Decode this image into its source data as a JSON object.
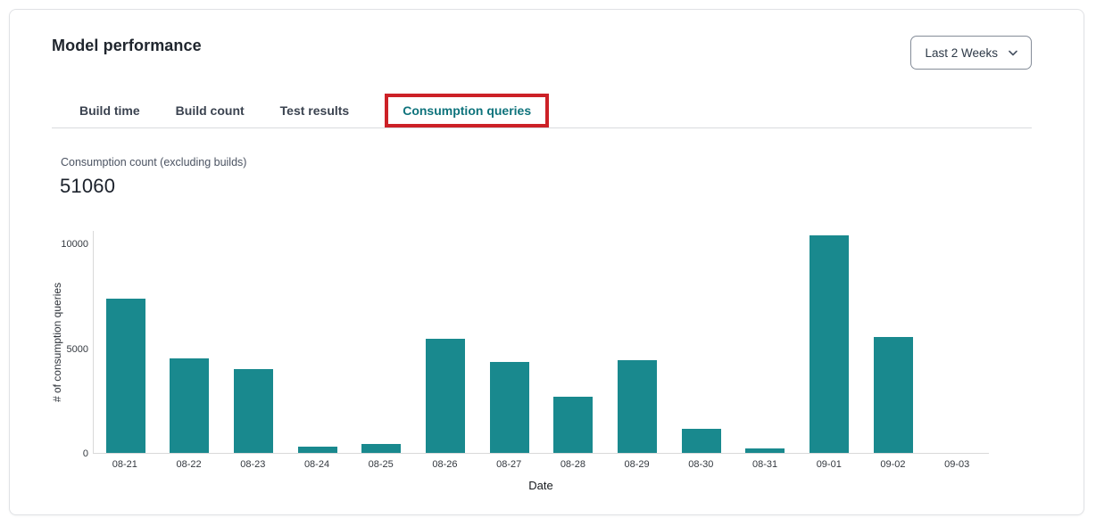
{
  "header": {
    "title": "Model performance",
    "date_range": {
      "value": "Last 2 Weeks"
    }
  },
  "tabs": {
    "items": [
      {
        "label": "Build time",
        "active": false
      },
      {
        "label": "Build count",
        "active": false
      },
      {
        "label": "Test results",
        "active": false
      },
      {
        "label": "Consumption queries",
        "active": true
      }
    ]
  },
  "annotation": {
    "type": "highlight-box",
    "color": "#cc2127"
  },
  "stat": {
    "label": "Consumption count (excluding builds)",
    "value": "51060"
  },
  "chart_data": {
    "type": "bar",
    "categories": [
      "08-21",
      "08-22",
      "08-23",
      "08-24",
      "08-25",
      "08-26",
      "08-27",
      "08-28",
      "08-29",
      "08-30",
      "08-31",
      "09-01",
      "09-02",
      "09-03"
    ],
    "values": [
      7400,
      4550,
      4020,
      320,
      440,
      5480,
      4350,
      2700,
      4440,
      1140,
      220,
      10450,
      5550,
      0
    ],
    "title": "",
    "xlabel": "Date",
    "ylabel": "# of consumption queries",
    "yticks": [
      0,
      5000,
      10000
    ],
    "ylim": [
      0,
      10650
    ],
    "bar_color": "#19898e",
    "grid": false,
    "legend": false
  }
}
